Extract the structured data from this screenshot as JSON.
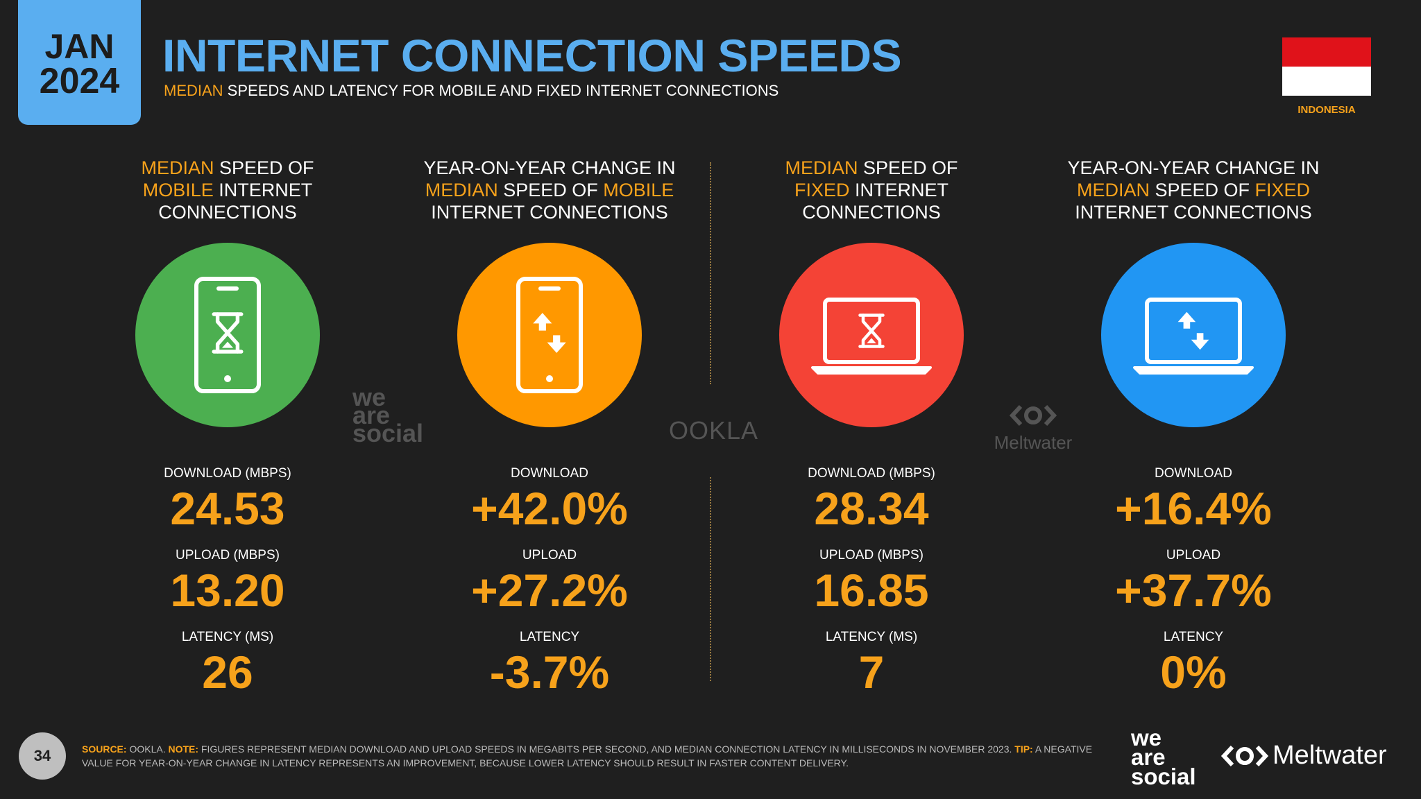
{
  "badge": {
    "month": "JAN",
    "year": "2024"
  },
  "header": {
    "title": "INTERNET CONNECTION SPEEDS",
    "subtitle_hl": "MEDIAN",
    "subtitle_rest": " SPEEDS AND LATENCY FOR MOBILE AND FIXED INTERNET CONNECTIONS"
  },
  "flag": {
    "country": "INDONESIA"
  },
  "colors": {
    "accent": "#f7a21b",
    "title_blue": "#5aaef0",
    "green": "#4caf50",
    "orange": "#ff9800",
    "red": "#f44336",
    "blue": "#2196f3"
  },
  "columns": [
    {
      "head_parts": [
        [
          "MEDIAN",
          "hl"
        ],
        [
          " SPEED OF",
          "n"
        ],
        [
          "br",
          ""
        ],
        [
          "MOBILE",
          "hl"
        ],
        [
          " INTERNET",
          "n"
        ],
        [
          "br",
          ""
        ],
        [
          "CONNECTIONS",
          "n"
        ]
      ],
      "icon": "phone-hourglass-icon",
      "metrics": [
        {
          "label": "DOWNLOAD (MBPS)",
          "value": "24.53"
        },
        {
          "label": "UPLOAD (MBPS)",
          "value": "13.20"
        },
        {
          "label": "LATENCY (MS)",
          "value": "26"
        }
      ]
    },
    {
      "head_parts": [
        [
          "YEAR-ON-YEAR CHANGE IN",
          "n"
        ],
        [
          "br",
          ""
        ],
        [
          "MEDIAN",
          "hl"
        ],
        [
          " SPEED OF ",
          "n"
        ],
        [
          "MOBILE",
          "hl"
        ],
        [
          "br",
          ""
        ],
        [
          "INTERNET CONNECTIONS",
          "n"
        ]
      ],
      "icon": "phone-arrows-icon",
      "metrics": [
        {
          "label": "DOWNLOAD",
          "value": "+42.0%"
        },
        {
          "label": "UPLOAD",
          "value": "+27.2%"
        },
        {
          "label": "LATENCY",
          "value": "-3.7%"
        }
      ]
    },
    {
      "head_parts": [
        [
          "MEDIAN",
          "hl"
        ],
        [
          " SPEED OF",
          "n"
        ],
        [
          "br",
          ""
        ],
        [
          "FIXED",
          "hl"
        ],
        [
          " INTERNET",
          "n"
        ],
        [
          "br",
          ""
        ],
        [
          "CONNECTIONS",
          "n"
        ]
      ],
      "icon": "laptop-hourglass-icon",
      "metrics": [
        {
          "label": "DOWNLOAD (MBPS)",
          "value": "28.34"
        },
        {
          "label": "UPLOAD (MBPS)",
          "value": "16.85"
        },
        {
          "label": "LATENCY (MS)",
          "value": "7"
        }
      ]
    },
    {
      "head_parts": [
        [
          "YEAR-ON-YEAR CHANGE IN",
          "n"
        ],
        [
          "br",
          ""
        ],
        [
          "MEDIAN",
          "hl"
        ],
        [
          " SPEED OF ",
          "n"
        ],
        [
          "FIXED",
          "hl"
        ],
        [
          "br",
          ""
        ],
        [
          "INTERNET CONNECTIONS",
          "n"
        ]
      ],
      "icon": "laptop-arrows-icon",
      "metrics": [
        {
          "label": "DOWNLOAD",
          "value": "+16.4%"
        },
        {
          "label": "UPLOAD",
          "value": "+37.7%"
        },
        {
          "label": "LATENCY",
          "value": "0%"
        }
      ]
    }
  ],
  "watermarks": {
    "was": [
      "we",
      "are",
      "social"
    ],
    "ookla": "OOKLA",
    "meltwater": "Meltwater"
  },
  "footer": {
    "source_label": "SOURCE:",
    "source": " OOKLA. ",
    "note_label": "NOTE:",
    "note": " FIGURES REPRESENT MEDIAN DOWNLOAD AND UPLOAD SPEEDS IN MEGABITS PER SECOND, AND MEDIAN CONNECTION LATENCY IN MILLISECONDS IN NOVEMBER 2023. ",
    "tip_label": "TIP:",
    "tip": " A NEGATIVE VALUE FOR YEAR-ON-YEAR CHANGE IN LATENCY REPRESENTS AN IMPROVEMENT, BECAUSE LOWER LATENCY SHOULD RESULT IN FASTER CONTENT DELIVERY."
  },
  "page_number": "34",
  "brands": {
    "was": [
      "we",
      "are",
      "social"
    ],
    "meltwater": "Meltwater"
  }
}
